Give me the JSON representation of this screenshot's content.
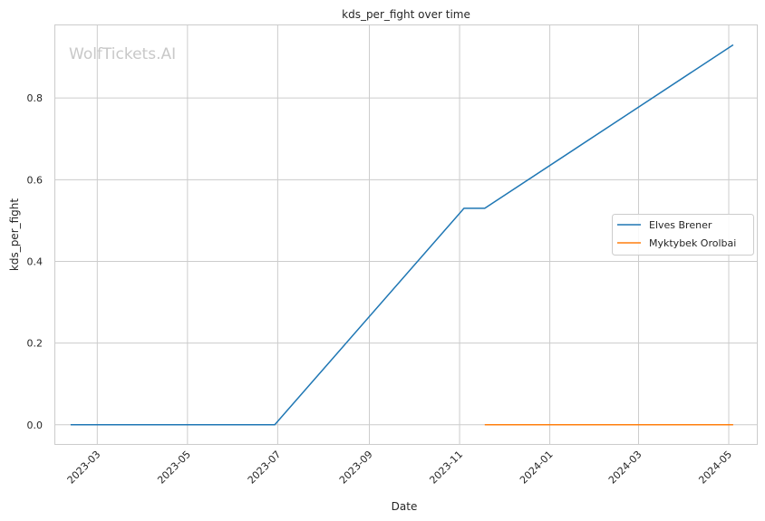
{
  "chart_data": {
    "type": "line",
    "title": "kds_per_fight over time",
    "xlabel": "Date",
    "ylabel": "kds_per_fight",
    "watermark": "WolfTickets.AI",
    "x_ticks": [
      "2023-03-01",
      "2023-05-01",
      "2023-07-01",
      "2023-09-01",
      "2023-11-01",
      "2024-01-01",
      "2024-03-01",
      "2024-05-01"
    ],
    "x_tick_labels": [
      "2023-03",
      "2023-05",
      "2023-07",
      "2023-09",
      "2023-11",
      "2024-01",
      "2024-03",
      "2024-05"
    ],
    "xlim": [
      "2023-01-31",
      "2024-05-20"
    ],
    "y_ticks": [
      0.0,
      0.2,
      0.4,
      0.6,
      0.8
    ],
    "y_tick_labels": [
      "0.0",
      "0.2",
      "0.4",
      "0.6",
      "0.8"
    ],
    "ylim": [
      -0.047,
      0.98
    ],
    "grid": true,
    "legend_position": "center-right",
    "series": [
      {
        "name": "Elves Brener",
        "color": "#1f77b4",
        "points": [
          {
            "x": "2023-02-11",
            "y": 0.0
          },
          {
            "x": "2023-06-29",
            "y": 0.0
          },
          {
            "x": "2023-11-04",
            "y": 0.53
          },
          {
            "x": "2023-11-18",
            "y": 0.53
          },
          {
            "x": "2024-05-04",
            "y": 0.93
          }
        ]
      },
      {
        "name": "Myktybek Orolbai",
        "color": "#ff7f0e",
        "points": [
          {
            "x": "2023-11-18",
            "y": 0.0
          },
          {
            "x": "2024-05-04",
            "y": 0.0
          }
        ]
      }
    ]
  }
}
